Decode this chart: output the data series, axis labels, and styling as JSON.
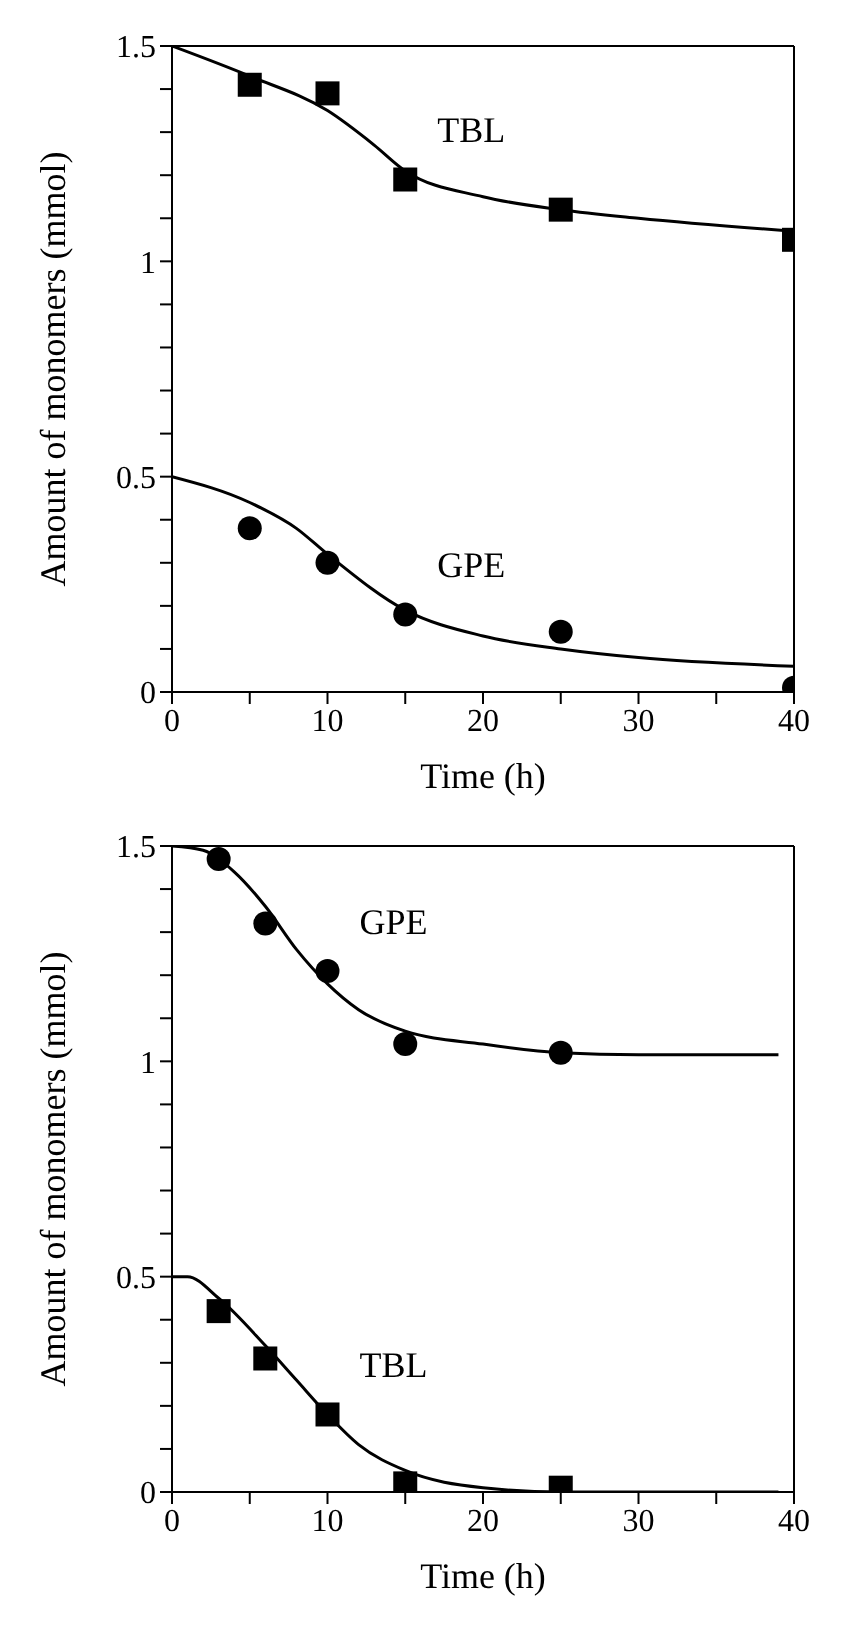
{
  "chart_data": [
    {
      "type": "scatter",
      "xlabel": "Time (h)",
      "ylabel": "Amount of monomers (mmol)",
      "xlim": [
        0,
        40
      ],
      "xticks": [
        0,
        {
          "value": 5,
          "label": null
        },
        10,
        {
          "value": 15,
          "label": null
        },
        20,
        {
          "value": 25,
          "label": null
        },
        30,
        {
          "value": 35,
          "label": null
        },
        40
      ],
      "ylim": [
        0,
        1.5
      ],
      "yticks": [
        0,
        {
          "value": 0.1,
          "label": null
        },
        {
          "value": 0.2,
          "label": null
        },
        {
          "value": 0.3,
          "label": null
        },
        {
          "value": 0.4,
          "label": null
        },
        0.5,
        {
          "value": 0.6,
          "label": null
        },
        {
          "value": 0.7,
          "label": null
        },
        {
          "value": 0.8,
          "label": null
        },
        {
          "value": 0.9,
          "label": null
        },
        1,
        {
          "value": 1.1,
          "label": null
        },
        {
          "value": 1.2,
          "label": null
        },
        {
          "value": 1.3,
          "label": null
        },
        {
          "value": 1.4,
          "label": null
        },
        1.5
      ],
      "grid": false,
      "legend": false,
      "series": [
        {
          "name": "TBL",
          "marker": "square",
          "color": "#000000",
          "x": [
            5,
            10,
            15,
            25,
            40
          ],
          "values": [
            1.41,
            1.39,
            1.19,
            1.12,
            1.05
          ]
        },
        {
          "name": "GPE",
          "marker": "circle",
          "color": "#000000",
          "x": [
            5,
            10,
            15,
            25,
            40
          ],
          "values": [
            0.38,
            0.3,
            0.18,
            0.14,
            0.01
          ]
        },
        {
          "type": "line",
          "marker": "none",
          "line_style": "solid",
          "color": "#000000",
          "x": [
            0,
            5,
            10,
            13,
            15,
            20,
            25,
            30,
            40
          ],
          "values": [
            1.5,
            1.43,
            1.35,
            1.27,
            1.21,
            1.15,
            1.12,
            1.1,
            1.07
          ]
        },
        {
          "type": "line",
          "marker": "none",
          "line_style": "solid",
          "color": "#000000",
          "x": [
            0,
            5,
            8,
            10,
            15,
            20,
            25,
            30,
            40
          ],
          "values": [
            0.5,
            0.44,
            0.38,
            0.32,
            0.19,
            0.13,
            0.1,
            0.08,
            0.06
          ]
        }
      ]
    },
    {
      "type": "scatter",
      "xlabel": "Time (h)",
      "ylabel": "Amount of monomers (mmol)",
      "xlim": [
        0,
        40
      ],
      "xticks": [
        0,
        {
          "value": 5,
          "label": null
        },
        10,
        {
          "value": 15,
          "label": null
        },
        20,
        {
          "value": 25,
          "label": null
        },
        30,
        {
          "value": 35,
          "label": null
        },
        40
      ],
      "ylim": [
        0,
        1.5
      ],
      "yticks": [
        0,
        {
          "value": 0.1,
          "label": null
        },
        {
          "value": 0.2,
          "label": null
        },
        {
          "value": 0.3,
          "label": null
        },
        {
          "value": 0.4,
          "label": null
        },
        0.5,
        {
          "value": 0.6,
          "label": null
        },
        {
          "value": 0.7,
          "label": null
        },
        {
          "value": 0.8,
          "label": null
        },
        {
          "value": 0.9,
          "label": null
        },
        1,
        {
          "value": 1.1,
          "label": null
        },
        {
          "value": 1.2,
          "label": null
        },
        {
          "value": 1.3,
          "label": null
        },
        {
          "value": 1.4,
          "label": null
        },
        1.5
      ],
      "grid": false,
      "legend": false,
      "series": [
        {
          "name": "GPE",
          "marker": "circle",
          "color": "#000000",
          "x": [
            3,
            6,
            10,
            15,
            25
          ],
          "values": [
            1.47,
            1.32,
            1.21,
            1.04,
            1.02
          ]
        },
        {
          "name": "TBL",
          "marker": "square",
          "color": "#000000",
          "x": [
            3,
            6,
            10,
            15,
            25
          ],
          "values": [
            0.42,
            0.31,
            0.18,
            0.02,
            0.01
          ]
        },
        {
          "type": "line",
          "marker": "none",
          "line_style": "solid",
          "color": "#000000",
          "x": [
            0,
            2,
            4,
            6,
            8,
            10,
            12,
            15,
            20,
            25,
            30,
            39
          ],
          "values": [
            1.5,
            1.49,
            1.44,
            1.36,
            1.26,
            1.18,
            1.12,
            1.07,
            1.04,
            1.02,
            1.015,
            1.015
          ]
        },
        {
          "type": "line",
          "marker": "none",
          "line_style": "solid",
          "color": "#000000",
          "x": [
            0,
            1,
            3,
            6,
            8,
            10,
            12,
            15,
            20,
            25,
            39
          ],
          "values": [
            0.5,
            0.5,
            0.45,
            0.34,
            0.26,
            0.18,
            0.11,
            0.05,
            0.01,
            0,
            0
          ]
        }
      ]
    }
  ]
}
